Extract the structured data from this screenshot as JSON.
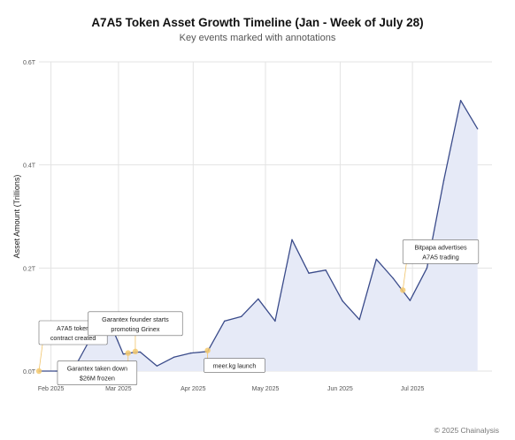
{
  "chart_data": {
    "type": "area",
    "title": "A7A5 Token Asset Growth Timeline (Jan - Week of July 28)",
    "subtitle": "Key events marked with annotations",
    "ylabel": "Asset Amount (Trillions)",
    "xlabel": "",
    "ylim": [
      0,
      0.6
    ],
    "xlim": [
      "2025-01-27",
      "2025-08-03"
    ],
    "grid": true,
    "y_ticks": [
      {
        "value": 0.0,
        "label": "0.0T"
      },
      {
        "value": 0.2,
        "label": "0.2T"
      },
      {
        "value": 0.4,
        "label": "0.4T"
      },
      {
        "value": 0.6,
        "label": "0.6T"
      }
    ],
    "x_ticks": [
      {
        "date": "2025-02-01",
        "label": "Feb 2025"
      },
      {
        "date": "2025-03-01",
        "label": "Mar 2025"
      },
      {
        "date": "2025-04-01",
        "label": "Apr 2025"
      },
      {
        "date": "2025-05-01",
        "label": "May 2025"
      },
      {
        "date": "2025-06-01",
        "label": "Jun 2025"
      },
      {
        "date": "2025-07-01",
        "label": "Jul 2025"
      }
    ],
    "series": [
      {
        "color": "#3a4b8a",
        "fill": "#e6eaf7",
        "points": [
          {
            "date": "2025-01-27",
            "value": 0.0
          },
          {
            "date": "2025-02-03",
            "value": 0.0
          },
          {
            "date": "2025-02-10",
            "value": 0.0
          },
          {
            "date": "2025-02-17",
            "value": 0.06
          },
          {
            "date": "2025-02-24",
            "value": 0.11
          },
          {
            "date": "2025-03-03",
            "value": 0.033
          },
          {
            "date": "2025-03-07",
            "value": 0.036
          },
          {
            "date": "2025-03-10",
            "value": 0.037
          },
          {
            "date": "2025-03-17",
            "value": 0.01
          },
          {
            "date": "2025-03-24",
            "value": 0.027
          },
          {
            "date": "2025-03-31",
            "value": 0.035
          },
          {
            "date": "2025-04-07",
            "value": 0.038
          },
          {
            "date": "2025-04-14",
            "value": 0.097
          },
          {
            "date": "2025-04-21",
            "value": 0.106
          },
          {
            "date": "2025-04-28",
            "value": 0.14
          },
          {
            "date": "2025-05-05",
            "value": 0.097
          },
          {
            "date": "2025-05-12",
            "value": 0.255
          },
          {
            "date": "2025-05-19",
            "value": 0.19
          },
          {
            "date": "2025-05-26",
            "value": 0.196
          },
          {
            "date": "2025-06-02",
            "value": 0.136
          },
          {
            "date": "2025-06-09",
            "value": 0.1
          },
          {
            "date": "2025-06-16",
            "value": 0.217
          },
          {
            "date": "2025-06-23",
            "value": 0.18
          },
          {
            "date": "2025-06-30",
            "value": 0.137
          },
          {
            "date": "2025-07-07",
            "value": 0.2
          },
          {
            "date": "2025-07-14",
            "value": 0.37
          },
          {
            "date": "2025-07-21",
            "value": 0.525
          },
          {
            "date": "2025-07-28",
            "value": 0.47
          }
        ]
      }
    ],
    "annotations": [
      {
        "date": "2025-01-27",
        "value": 0.0,
        "text": [
          "A7A5 token",
          "contract created"
        ],
        "anchor": "above-right"
      },
      {
        "date": "2025-03-05",
        "value": 0.035,
        "text": [
          "Garantex taken down",
          "$26M frozen"
        ],
        "anchor": "below-left"
      },
      {
        "date": "2025-03-08",
        "value": 0.038,
        "text": [
          "Garantex founder starts",
          "promoting Grinex"
        ],
        "anchor": "above"
      },
      {
        "date": "2025-04-07",
        "value": 0.04,
        "text": [
          "meer.kg launch"
        ],
        "anchor": "below-right"
      },
      {
        "date": "2025-06-27",
        "value": 0.157,
        "text": [
          "Bitpapa advertises",
          "A7A5 trading"
        ],
        "anchor": "above-right"
      }
    ],
    "credit": "© 2025 Chainalysis"
  }
}
